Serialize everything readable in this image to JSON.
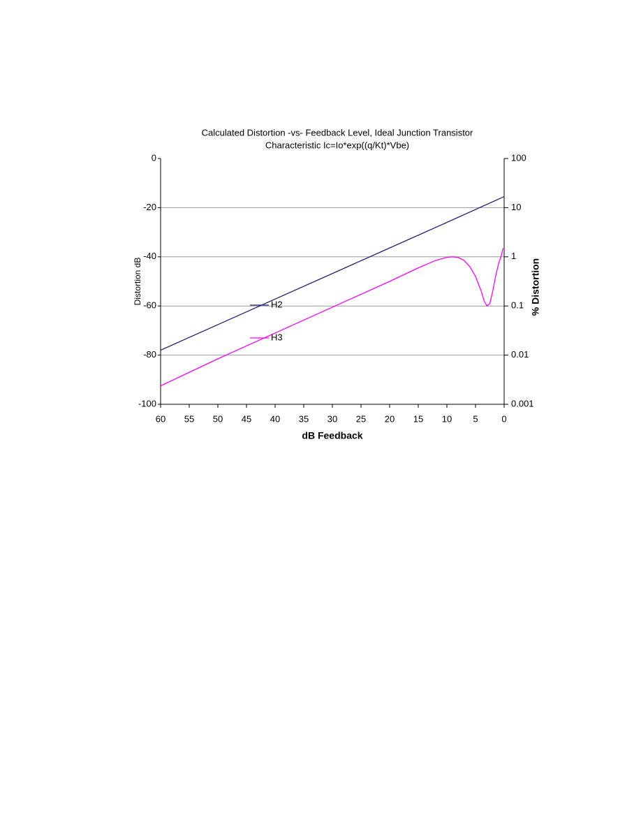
{
  "chart_data": {
    "type": "line",
    "title": "Calculated Distortion -vs- Feedback Level, Ideal Junction Transistor",
    "subtitle": "Characteristic Ic=Io*exp((q/Kt)*Vbe)",
    "x_label": "dB Feedback",
    "y_label": "Distortion dB",
    "y2_label": "% Distortion",
    "xlim": [
      60,
      0
    ],
    "xticks": [
      60,
      55,
      50,
      45,
      40,
      35,
      30,
      25,
      20,
      15,
      10,
      5,
      0
    ],
    "ylim": [
      -100,
      0
    ],
    "yticks": [
      0,
      -20,
      -40,
      -60,
      -80,
      -100
    ],
    "y2lim": [
      0.001,
      100
    ],
    "y2ticks": [
      100,
      10,
      1,
      0.1,
      0.01,
      0.001
    ],
    "y2_log": true,
    "grid": true,
    "series": [
      {
        "name": "H2",
        "color": "#1f1f70",
        "x": [
          60,
          50,
          40,
          30,
          20,
          10,
          0
        ],
        "values": [
          -78,
          -67.6,
          -57.2,
          -46.8,
          -36.4,
          -26,
          -15.5
        ]
      },
      {
        "name": "H3",
        "color": "#ff00ff",
        "x": [
          60,
          50,
          40,
          30,
          20,
          15,
          12,
          10,
          9,
          8,
          7,
          6,
          5,
          4,
          3.5,
          3,
          2.5,
          2,
          1.5,
          1,
          0.5,
          0.2
        ],
        "values": [
          -92.5,
          -81.5,
          -71,
          -60.5,
          -50,
          -44.5,
          -41.5,
          -40.2,
          -40,
          -40.3,
          -41.5,
          -44,
          -48,
          -54,
          -58,
          -60,
          -59,
          -54,
          -48,
          -43,
          -39.5,
          -36.5
        ]
      }
    ]
  }
}
